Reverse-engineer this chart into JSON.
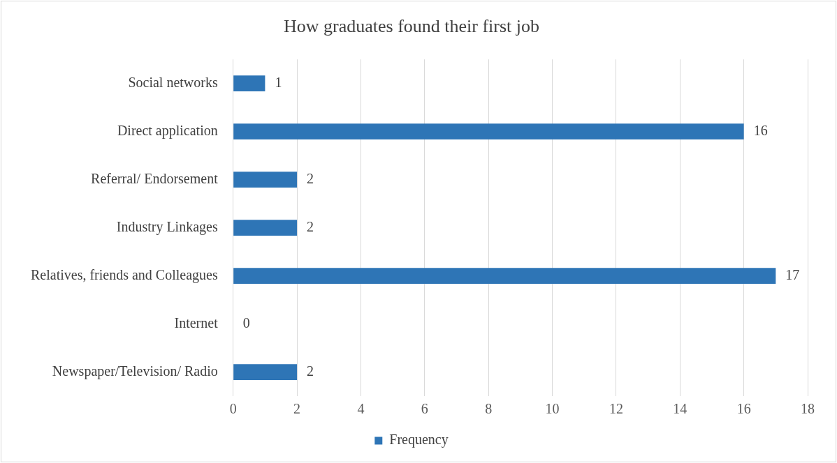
{
  "chart_data": {
    "type": "bar",
    "orientation": "horizontal",
    "title": "How graduates found their first job",
    "categories": [
      "Social networks",
      "Direct application",
      "Referral/ Endorsement",
      "Industry Linkages",
      "Relatives, friends and Colleagues",
      "Internet",
      "Newspaper/Television/ Radio"
    ],
    "series": [
      {
        "name": "Frequency",
        "color": "#2e75b6",
        "values": [
          1,
          16,
          2,
          2,
          17,
          0,
          2
        ]
      }
    ],
    "xlim": [
      0,
      18
    ],
    "xticks": [
      0,
      2,
      4,
      6,
      8,
      10,
      12,
      14,
      16,
      18
    ],
    "grid": "x",
    "legend": "bottom",
    "data_labels": true
  }
}
